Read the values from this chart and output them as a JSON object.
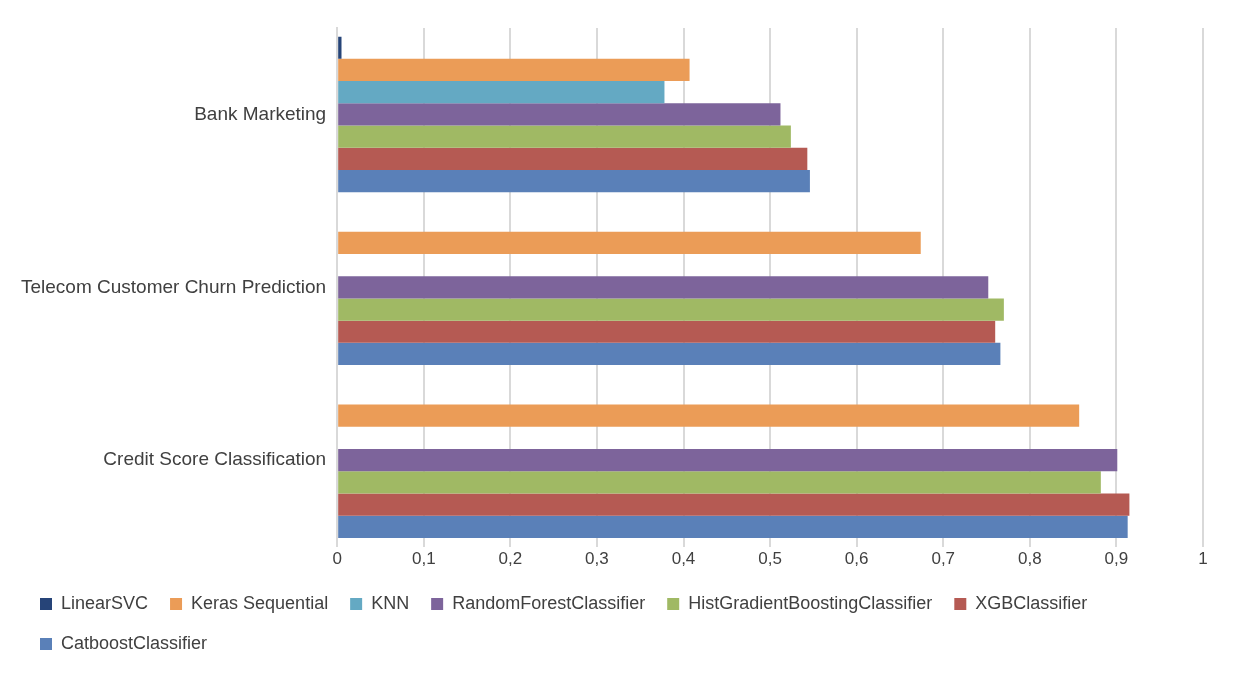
{
  "chart_data": {
    "type": "bar",
    "orientation": "horizontal",
    "categories": [
      "Bank Marketing",
      "Telecom Customer Churn Prediction",
      "Credit Score Classification"
    ],
    "series": [
      {
        "name": "LinearSVC",
        "color": "#264478",
        "values": [
          0.005,
          null,
          null
        ]
      },
      {
        "name": "Keras Sequential",
        "color": "#eb9c57",
        "values": [
          0.407,
          0.674,
          0.857
        ]
      },
      {
        "name": "KNN",
        "color": "#64a9c3",
        "values": [
          0.378,
          null,
          null
        ]
      },
      {
        "name": "RandomForestClassifier",
        "color": "#7d649b",
        "values": [
          0.512,
          0.752,
          0.901
        ]
      },
      {
        "name": "HistGradientBoostingClassifier",
        "color": "#a0b964",
        "values": [
          0.524,
          0.77,
          0.882
        ]
      },
      {
        "name": "XGBClassifier",
        "color": "#b55a53",
        "values": [
          0.543,
          0.76,
          0.915
        ]
      },
      {
        "name": "CatboostClassifier",
        "color": "#5a80b8",
        "values": [
          0.546,
          0.766,
          0.913
        ]
      }
    ],
    "xlim": [
      0,
      1
    ],
    "xticks": [
      0,
      {
        "value": 0.1,
        "label": "0,1"
      },
      {
        "value": 0.2,
        "label": "0,2"
      },
      {
        "value": 0.3,
        "label": "0,3"
      },
      {
        "value": 0.4,
        "label": "0,4"
      },
      {
        "value": 0.5,
        "label": "0,5"
      },
      {
        "value": 0.6,
        "label": "0,6"
      },
      {
        "value": 0.7,
        "label": "0,7"
      },
      {
        "value": 0.8,
        "label": "0,8"
      },
      {
        "value": 0.9,
        "label": "0,9"
      },
      1
    ],
    "grid": "x",
    "legend": "bottom"
  }
}
